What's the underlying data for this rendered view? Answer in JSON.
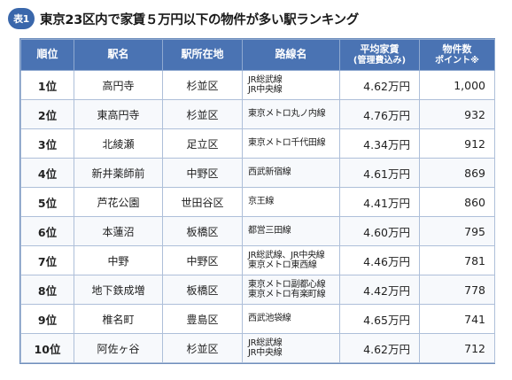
{
  "header": {
    "badge": "表1",
    "title": "東京23区内で家賃５万円以下の物件が多い駅ランキング"
  },
  "table": {
    "columns": {
      "rank": "順位",
      "station": "駅名",
      "ward": "駅所在地",
      "line": "路線名",
      "rent_main": "平均家賃",
      "rent_sub": "(管理費込み)",
      "count_main": "物件数",
      "count_sub": "ポイント※"
    },
    "rows": [
      {
        "rank": "1位",
        "station": "高円寺",
        "ward": "杉並区",
        "lines": [
          "JR総武線",
          "JR中央線"
        ],
        "rent": "4.62万円",
        "count": "1,000"
      },
      {
        "rank": "2位",
        "station": "東高円寺",
        "ward": "杉並区",
        "lines": [
          "東京メトロ丸ノ内線"
        ],
        "rent": "4.76万円",
        "count": "932"
      },
      {
        "rank": "3位",
        "station": "北綾瀬",
        "ward": "足立区",
        "lines": [
          "東京メトロ千代田線"
        ],
        "rent": "4.34万円",
        "count": "912"
      },
      {
        "rank": "4位",
        "station": "新井薬師前",
        "ward": "中野区",
        "lines": [
          "西武新宿線"
        ],
        "rent": "4.61万円",
        "count": "869"
      },
      {
        "rank": "5位",
        "station": "芦花公園",
        "ward": "世田谷区",
        "lines": [
          "京王線"
        ],
        "rent": "4.41万円",
        "count": "860"
      },
      {
        "rank": "6位",
        "station": "本蓮沼",
        "ward": "板橋区",
        "lines": [
          "都営三田線"
        ],
        "rent": "4.60万円",
        "count": "795"
      },
      {
        "rank": "7位",
        "station": "中野",
        "ward": "中野区",
        "lines": [
          "JR総武線、JR中央線",
          "東京メトロ東西線"
        ],
        "rent": "4.46万円",
        "count": "781"
      },
      {
        "rank": "8位",
        "station": "地下鉄成増",
        "ward": "板橋区",
        "lines": [
          "東京メトロ副都心線",
          "東京メトロ有楽町線"
        ],
        "rent": "4.42万円",
        "count": "778"
      },
      {
        "rank": "9位",
        "station": "椎名町",
        "ward": "豊島区",
        "lines": [
          "西武池袋線"
        ],
        "rent": "4.65万円",
        "count": "741"
      },
      {
        "rank": "10位",
        "station": "阿佐ヶ谷",
        "ward": "杉並区",
        "lines": [
          "JR総武線",
          "JR中央線"
        ],
        "rent": "4.62万円",
        "count": "712"
      }
    ]
  }
}
